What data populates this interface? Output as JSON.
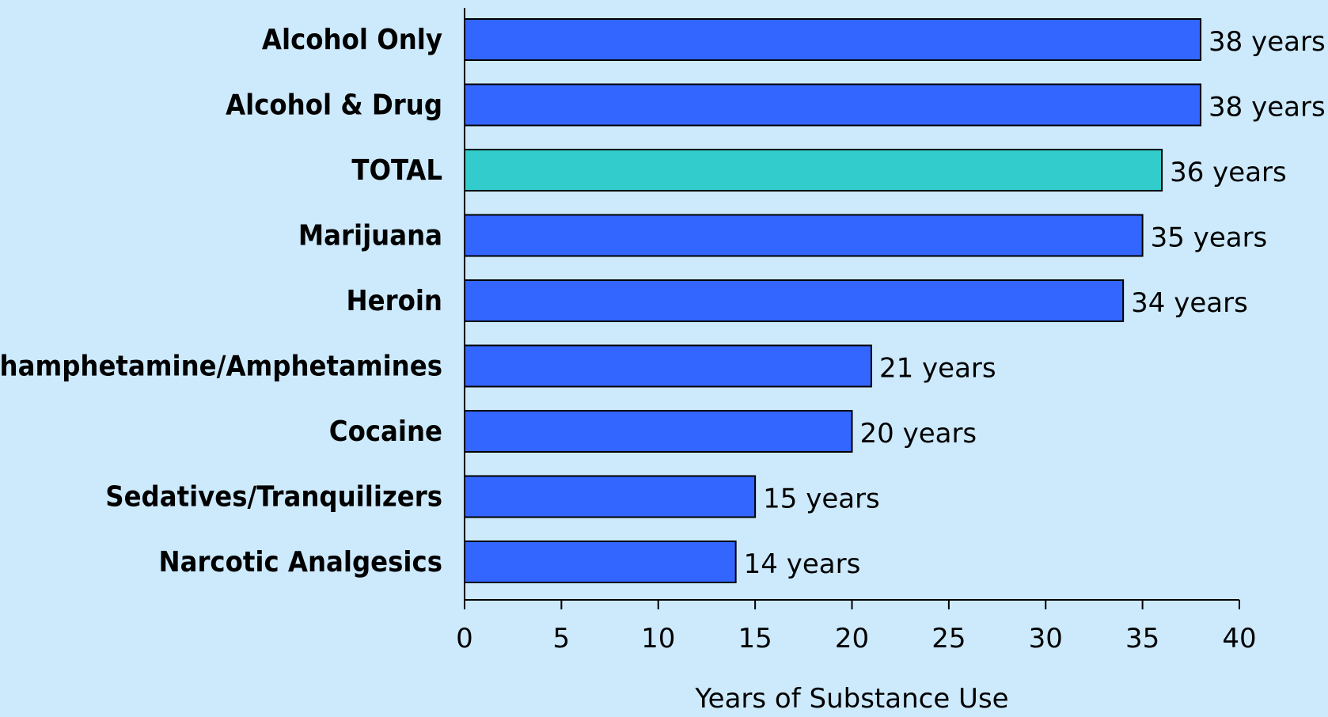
{
  "chart_data": {
    "type": "bar",
    "orientation": "horizontal",
    "categories": [
      "Alcohol Only",
      "Alcohol & Drug",
      "TOTAL",
      "Marijuana",
      "Heroin",
      "Methamphetamine/Amphetamines",
      "Cocaine",
      "Sedatives/Tranquilizers",
      "Narcotic Analgesics"
    ],
    "values": [
      38,
      38,
      36,
      35,
      34,
      21,
      20,
      15,
      14
    ],
    "data_labels": [
      "38 years",
      "38 years",
      "36 years",
      "35 years",
      "34 years",
      "21 years",
      "20 years",
      "15 years",
      "14 years"
    ],
    "xlabel": "Years of Substance Use",
    "xlim": [
      0,
      40
    ],
    "xticks": [
      "0",
      "5",
      "10",
      "15",
      "20",
      "25",
      "30",
      "35",
      "40"
    ],
    "grid": false,
    "legend": "none",
    "colors": {
      "bar": "#3366ff",
      "highlight": "#33cccc",
      "background": "#cdeafd",
      "outline": "#000000"
    },
    "highlight_index": 2
  }
}
